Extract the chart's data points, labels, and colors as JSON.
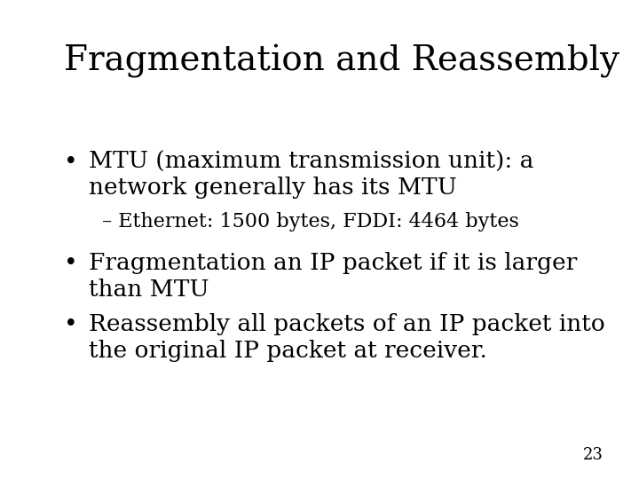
{
  "title": "Fragmentation and Reassembly",
  "background_color": "#ffffff",
  "title_fontsize": 28,
  "body_fontsize": 19,
  "sub_fontsize": 16,
  "page_fontsize": 13,
  "text_color": "#000000",
  "page_number": "23",
  "content": [
    {
      "type": "bullet",
      "line1": "MTU (maximum transmission unit): a",
      "line2": "network generally has its MTU"
    },
    {
      "type": "subbullet",
      "text": "– Ethernet: 1500 bytes, FDDI: 4464 bytes"
    },
    {
      "type": "bullet",
      "line1": "Fragmentation an IP packet if it is larger",
      "line2": "than MTU"
    },
    {
      "type": "bullet",
      "line1": "Reassembly all packets of an IP packet into",
      "line2": "the original IP packet at receiver."
    }
  ]
}
